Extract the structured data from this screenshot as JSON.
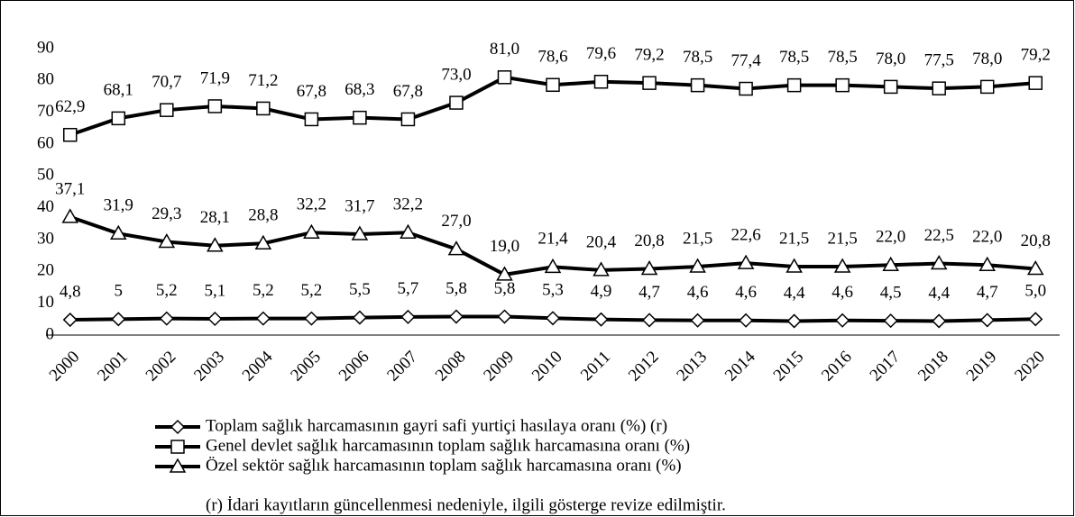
{
  "chart_data": {
    "type": "line",
    "categories": [
      "2000",
      "2001",
      "2002",
      "2003",
      "2004",
      "2005",
      "2006",
      "2007",
      "2008",
      "2009",
      "2010",
      "2011",
      "2012",
      "2013",
      "2014",
      "2015",
      "2016",
      "2017",
      "2018",
      "2019",
      "2020"
    ],
    "series": [
      {
        "name": "Toplam sağlık harcamasının gayri safi yurtiçi hasılaya oranı (%) (r)",
        "color": "#000000",
        "marker": "diamond",
        "values": [
          4.8,
          5,
          5.2,
          5.1,
          5.2,
          5.2,
          5.5,
          5.7,
          5.8,
          5.8,
          5.3,
          4.9,
          4.7,
          4.6,
          4.6,
          4.4,
          4.6,
          4.5,
          4.4,
          4.7,
          5.0
        ],
        "value_labels": [
          "4,8",
          "5",
          "5,2",
          "5,1",
          "5,2",
          "5,2",
          "5,5",
          "5,7",
          "5,8",
          "5,8",
          "5,3",
          "4,9",
          "4,7",
          "4,6",
          "4,6",
          "4,4",
          "4,6",
          "4,5",
          "4,4",
          "4,7",
          "5,0"
        ]
      },
      {
        "name": "Genel devlet sağlık harcamasının toplam sağlık harcamasına oranı (%)",
        "color": "#000000",
        "marker": "square",
        "values": [
          62.9,
          68.1,
          70.7,
          71.9,
          71.2,
          67.8,
          68.3,
          67.8,
          73.0,
          81.0,
          78.6,
          79.6,
          79.2,
          78.5,
          77.4,
          78.5,
          78.5,
          78.0,
          77.5,
          78.0,
          79.2
        ],
        "value_labels": [
          "62,9",
          "68,1",
          "70,7",
          "71,9",
          "71,2",
          "67,8",
          "68,3",
          "67,8",
          "73,0",
          "81,0",
          "78,6",
          "79,6",
          "79,2",
          "78,5",
          "77,4",
          "78,5",
          "78,5",
          "78,0",
          "77,5",
          "78,0",
          "79,2"
        ]
      },
      {
        "name": "Özel sektör sağlık harcamasının toplam sağlık harcamasına oranı (%)",
        "color": "#000000",
        "marker": "triangle",
        "values": [
          37.1,
          31.9,
          29.3,
          28.1,
          28.8,
          32.2,
          31.7,
          32.2,
          27.0,
          19.0,
          21.4,
          20.4,
          20.8,
          21.5,
          22.6,
          21.5,
          21.5,
          22.0,
          22.5,
          22.0,
          20.8
        ],
        "value_labels": [
          "37,1",
          "31,9",
          "29,3",
          "28,1",
          "28,8",
          "32,2",
          "31,7",
          "32,2",
          "27,0",
          "19,0",
          "21,4",
          "20,4",
          "20,8",
          "21,5",
          "22,6",
          "21,5",
          "21,5",
          "22,0",
          "22,5",
          "22,0",
          "20,8"
        ]
      }
    ],
    "note": "(r) İdari kayıtların güncellenmesi nedeniyle, ilgili gösterge revize edilmiştir.",
    "ylim": [
      0,
      90
    ],
    "yticks": [
      0,
      10,
      20,
      30,
      40,
      50,
      60,
      70,
      80,
      90
    ],
    "grid": false
  }
}
